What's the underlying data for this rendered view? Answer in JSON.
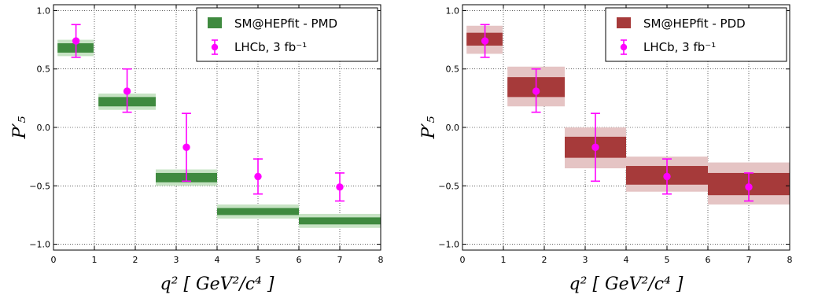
{
  "chart_data": [
    {
      "type": "bar",
      "ylabel": "P′₅",
      "xlabel": "q² [ GeV²/c⁴ ]",
      "xlim": [
        0,
        8
      ],
      "ylim": [
        -1.05,
        1.05
      ],
      "x_ticks": [
        0,
        1,
        2,
        3,
        4,
        5,
        6,
        7,
        8
      ],
      "y_ticks": [
        -1.0,
        -0.5,
        0.0,
        0.5,
        1.0
      ],
      "x_tick_labels": [
        "0",
        "1",
        "2",
        "3",
        "4",
        "5",
        "6",
        "7",
        "8"
      ],
      "y_tick_labels": [
        "−1.0",
        "−0.5",
        "0.0",
        "0.5",
        "1.0"
      ],
      "grid": true,
      "legend_position": "top-right",
      "colors": {
        "inner": "#3f8a3f",
        "outer": "#c7e3c4",
        "data": "#ff00ff"
      },
      "series": [
        {
          "name": "SM@HEPfit - PMD",
          "bins": [
            {
              "x0": 0.1,
              "x1": 0.98,
              "center": 0.68,
              "inner": [
                0.64,
                0.72
              ],
              "outer": [
                0.61,
                0.75
              ]
            },
            {
              "x0": 1.1,
              "x1": 2.5,
              "center": 0.22,
              "inner": [
                0.18,
                0.26
              ],
              "outer": [
                0.15,
                0.29
              ]
            },
            {
              "x0": 2.5,
              "x1": 4.0,
              "center": -0.43,
              "inner": [
                -0.47,
                -0.39
              ],
              "outer": [
                -0.5,
                -0.36
              ]
            },
            {
              "x0": 4.0,
              "x1": 6.0,
              "center": -0.72,
              "inner": [
                -0.75,
                -0.69
              ],
              "outer": [
                -0.78,
                -0.66
              ]
            },
            {
              "x0": 6.0,
              "x1": 8.0,
              "center": -0.8,
              "inner": [
                -0.83,
                -0.77
              ],
              "outer": [
                -0.86,
                -0.74
              ]
            }
          ]
        },
        {
          "name": "LHCb, 3 fb⁻¹",
          "points": [
            {
              "x": 0.55,
              "y": 0.74,
              "ylow": 0.6,
              "yhigh": 0.88
            },
            {
              "x": 1.8,
              "y": 0.31,
              "ylow": 0.13,
              "yhigh": 0.5
            },
            {
              "x": 3.25,
              "y": -0.17,
              "ylow": -0.46,
              "yhigh": 0.12
            },
            {
              "x": 5.0,
              "y": -0.42,
              "ylow": -0.57,
              "yhigh": -0.27
            },
            {
              "x": 7.0,
              "y": -0.51,
              "ylow": -0.63,
              "yhigh": -0.39
            }
          ]
        }
      ]
    },
    {
      "type": "bar",
      "ylabel": "P′₅",
      "xlabel": "q² [ GeV²/c⁴ ]",
      "xlim": [
        0,
        8
      ],
      "ylim": [
        -1.05,
        1.05
      ],
      "x_ticks": [
        0,
        1,
        2,
        3,
        4,
        5,
        6,
        7,
        8
      ],
      "y_ticks": [
        -1.0,
        -0.5,
        0.0,
        0.5,
        1.0
      ],
      "x_tick_labels": [
        "0",
        "1",
        "2",
        "3",
        "4",
        "5",
        "6",
        "7",
        "8"
      ],
      "y_tick_labels": [
        "−1.0",
        "−0.5",
        "0.0",
        "0.5",
        "1.0"
      ],
      "grid": true,
      "legend_position": "top-right",
      "colors": {
        "inner": "#a63a3a",
        "outer": "#e5c4c4",
        "data": "#ff00ff"
      },
      "series": [
        {
          "name": "SM@HEPfit - PDD",
          "bins": [
            {
              "x0": 0.1,
              "x1": 0.98,
              "center": 0.76,
              "inner": [
                0.7,
                0.81
              ],
              "outer": [
                0.63,
                0.87
              ]
            },
            {
              "x0": 1.1,
              "x1": 2.5,
              "center": 0.34,
              "inner": [
                0.26,
                0.43
              ],
              "outer": [
                0.18,
                0.52
              ]
            },
            {
              "x0": 2.5,
              "x1": 4.0,
              "center": -0.17,
              "inner": [
                -0.26,
                -0.08
              ],
              "outer": [
                -0.35,
                0.0
              ]
            },
            {
              "x0": 4.0,
              "x1": 6.0,
              "center": -0.4,
              "inner": [
                -0.49,
                -0.33
              ],
              "outer": [
                -0.55,
                -0.25
              ]
            },
            {
              "x0": 6.0,
              "x1": 8.0,
              "center": -0.48,
              "inner": [
                -0.58,
                -0.39
              ],
              "outer": [
                -0.66,
                -0.3
              ]
            }
          ]
        },
        {
          "name": "LHCb, 3 fb⁻¹",
          "points": [
            {
              "x": 0.55,
              "y": 0.74,
              "ylow": 0.6,
              "yhigh": 0.88
            },
            {
              "x": 1.8,
              "y": 0.31,
              "ylow": 0.13,
              "yhigh": 0.5
            },
            {
              "x": 3.25,
              "y": -0.17,
              "ylow": -0.46,
              "yhigh": 0.12
            },
            {
              "x": 5.0,
              "y": -0.42,
              "ylow": -0.57,
              "yhigh": -0.27
            },
            {
              "x": 7.0,
              "y": -0.51,
              "ylow": -0.63,
              "yhigh": -0.39
            }
          ]
        }
      ]
    }
  ]
}
